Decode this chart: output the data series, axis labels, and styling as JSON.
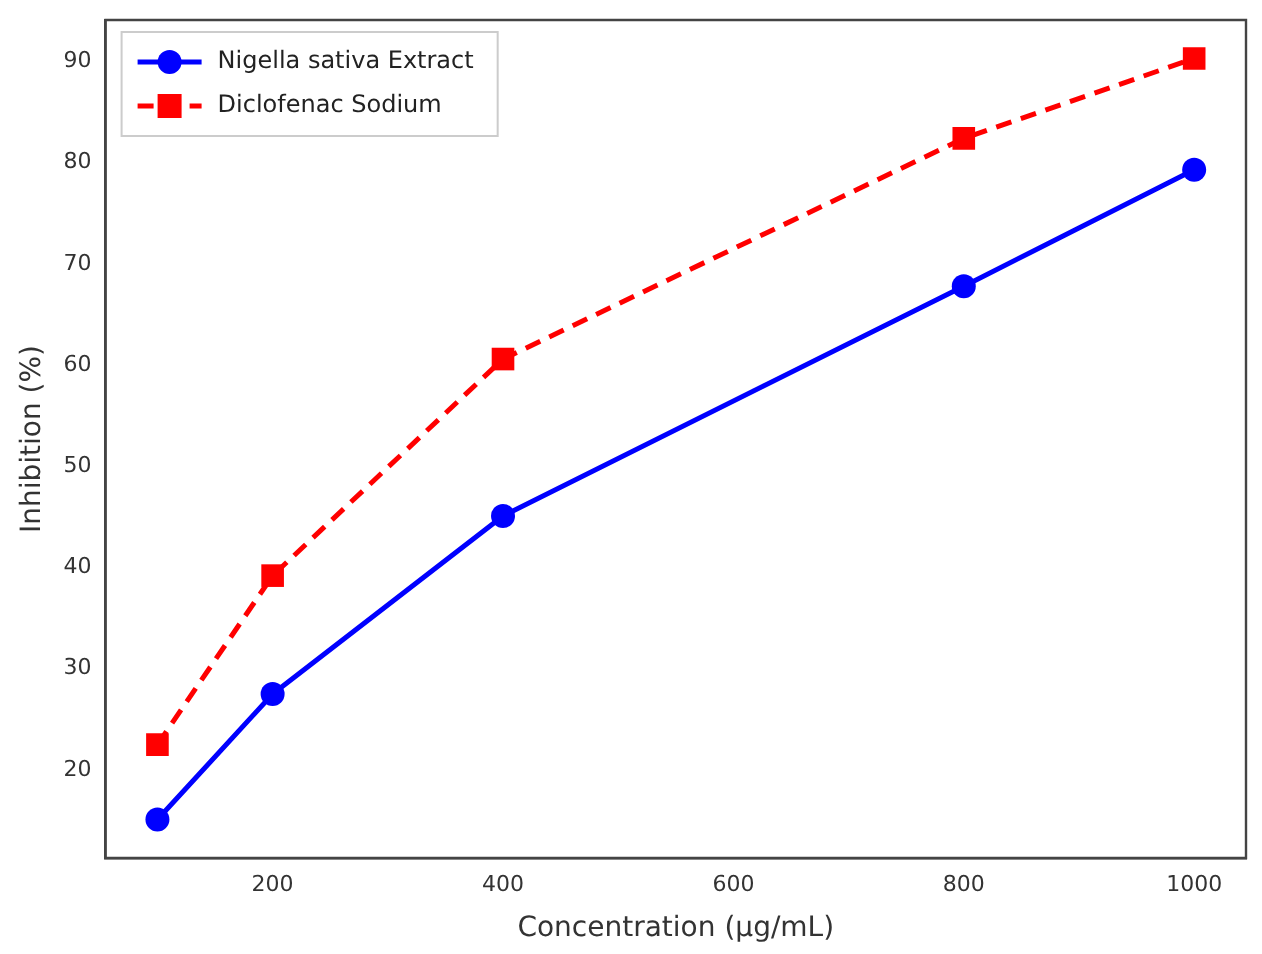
{
  "chart_data": {
    "type": "line",
    "xlabel": "Concentration (µg/mL)",
    "ylabel": "Inhibition (%)",
    "x": [
      100,
      200,
      400,
      800,
      1000
    ],
    "series": [
      {
        "name": "Nigella sativa Extract",
        "color": "#0000ff",
        "values": [
          15.1,
          27.5,
          45.1,
          67.8,
          79.3
        ],
        "marker": "circle",
        "line_style": "solid"
      },
      {
        "name": "Diclofenac Sodium",
        "color": "#ff0000",
        "values": [
          22.5,
          39.2,
          60.6,
          82.4,
          90.3
        ],
        "marker": "square",
        "line_style": "dashed"
      }
    ],
    "xlim": [
      55,
      1045
    ],
    "ylim": [
      11.3,
      94.1
    ],
    "xticks": [
      200,
      400,
      600,
      800,
      1000
    ],
    "yticks": [
      20,
      30,
      40,
      50,
      60,
      70,
      80,
      90
    ],
    "grid": false,
    "legend": "top left"
  }
}
